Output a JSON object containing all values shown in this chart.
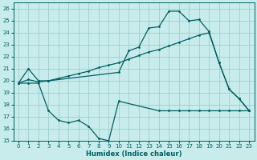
{
  "xlabel": "Humidex (Indice chaleur)",
  "bg_color": "#c8ecec",
  "grid_color": "#a0cccc",
  "line_color": "#006060",
  "xlim": [
    -0.5,
    23.5
  ],
  "ylim": [
    15,
    26.5
  ],
  "yticks": [
    15,
    16,
    17,
    18,
    19,
    20,
    21,
    22,
    23,
    24,
    25,
    26
  ],
  "xticks": [
    0,
    1,
    2,
    3,
    4,
    5,
    6,
    7,
    8,
    9,
    10,
    11,
    12,
    13,
    14,
    15,
    16,
    17,
    18,
    19,
    20,
    21,
    22,
    23
  ],
  "line1_x": [
    0,
    1,
    2,
    3,
    10,
    11,
    12,
    13,
    14,
    15,
    16,
    17,
    18,
    19,
    20,
    21,
    22,
    23
  ],
  "line1_y": [
    19.8,
    21.0,
    20.0,
    20.0,
    20.7,
    22.5,
    22.8,
    24.4,
    24.5,
    25.8,
    25.8,
    25.0,
    25.1,
    24.1,
    21.5,
    19.3,
    18.5,
    17.5
  ],
  "line2_x": [
    0,
    1,
    2,
    3,
    4,
    5,
    6,
    7,
    8,
    9,
    10,
    11,
    12,
    13,
    14,
    15,
    16,
    17,
    18,
    19,
    20,
    21,
    22,
    23
  ],
  "line2_y": [
    19.8,
    20.1,
    19.9,
    20.0,
    20.2,
    20.4,
    20.6,
    20.8,
    21.1,
    21.3,
    21.5,
    21.8,
    22.1,
    22.4,
    22.6,
    22.9,
    23.2,
    23.5,
    23.8,
    24.0,
    21.5,
    19.3,
    18.5,
    17.5
  ],
  "line3_x": [
    0,
    1,
    2,
    3,
    4,
    5,
    6,
    7,
    8,
    9,
    10,
    14,
    15,
    16,
    17,
    18,
    19,
    20,
    21,
    22,
    23
  ],
  "line3_y": [
    19.8,
    19.8,
    19.8,
    17.5,
    16.7,
    16.5,
    16.7,
    16.2,
    15.2,
    15.0,
    18.3,
    17.5,
    17.5,
    17.5,
    17.5,
    17.5,
    17.5,
    17.5,
    17.5,
    17.5,
    17.5
  ]
}
